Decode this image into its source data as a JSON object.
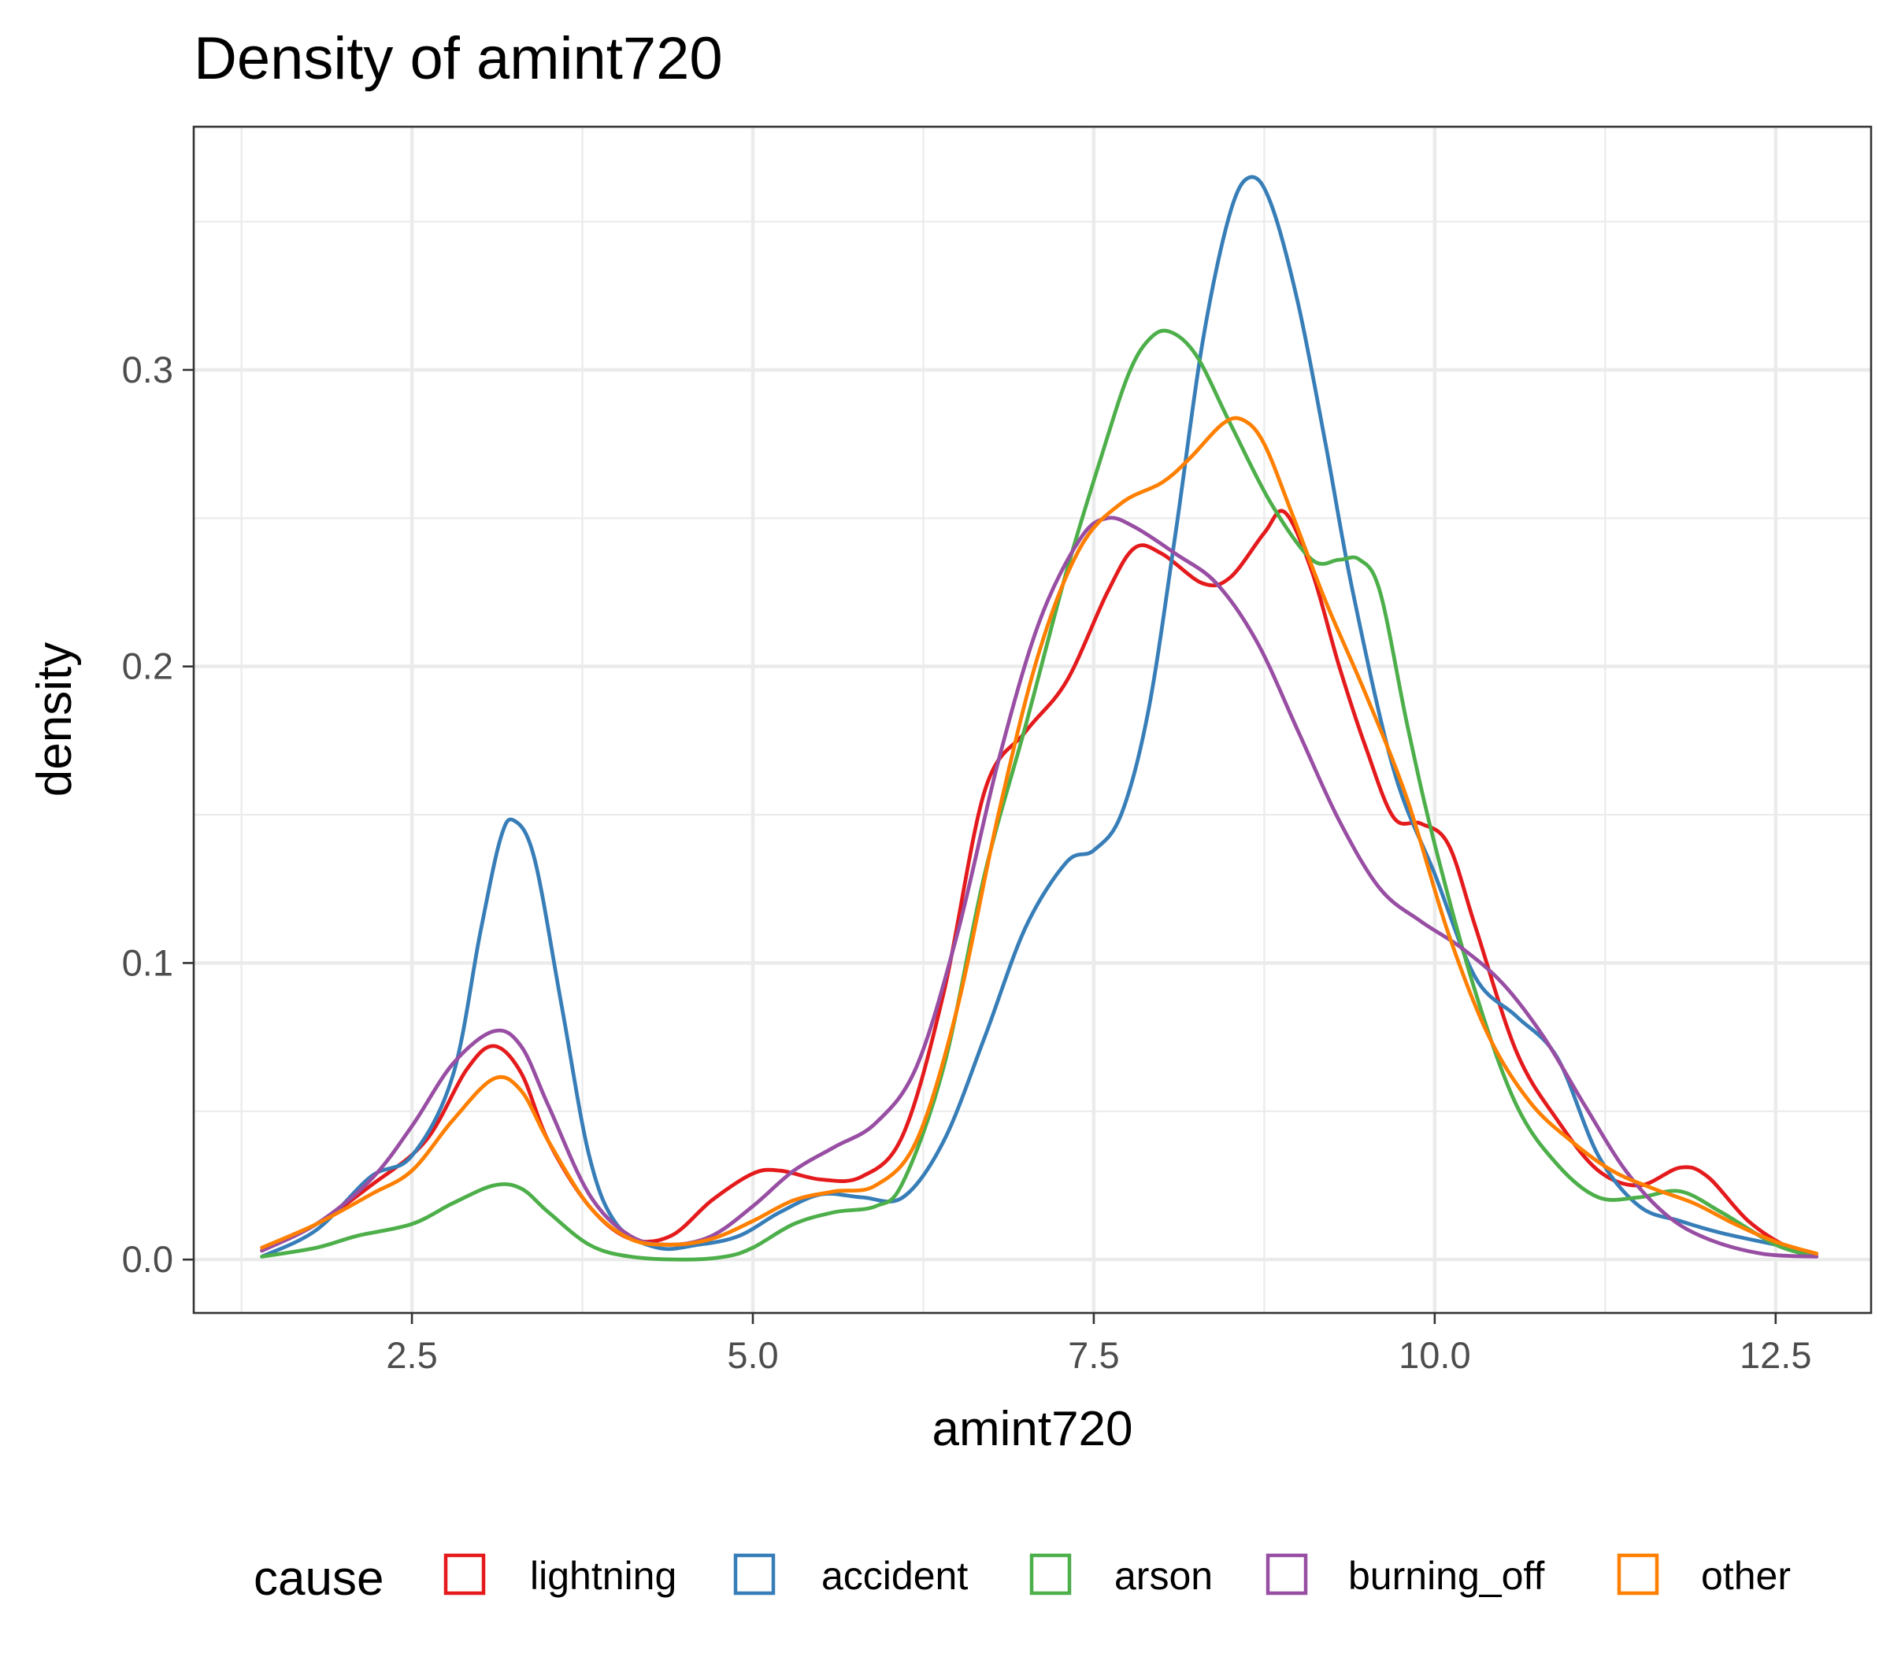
{
  "chart_data": {
    "type": "line",
    "title": "Density of amint720",
    "xlabel": "amint720",
    "ylabel": "density",
    "xlim": [
      0.9,
      13.2
    ],
    "ylim": [
      -0.018,
      0.382
    ],
    "x_ticks": [
      2.5,
      5.0,
      7.5,
      10.0,
      12.5
    ],
    "x_tick_labels": [
      "2.5",
      "5.0",
      "7.5",
      "10.0",
      "12.5"
    ],
    "y_ticks": [
      0.0,
      0.1,
      0.2,
      0.3
    ],
    "y_tick_labels": [
      "0.0",
      "0.1",
      "0.2",
      "0.3"
    ],
    "grid": true,
    "legend": {
      "title": "cause",
      "position": "bottom"
    },
    "series": [
      {
        "name": "lightning",
        "color": "#e41a1c",
        "points": [
          [
            1.4,
            0.003
          ],
          [
            1.8,
            0.012
          ],
          [
            2.2,
            0.025
          ],
          [
            2.6,
            0.04
          ],
          [
            2.9,
            0.064
          ],
          [
            3.1,
            0.072
          ],
          [
            3.3,
            0.063
          ],
          [
            3.5,
            0.04
          ],
          [
            3.8,
            0.018
          ],
          [
            4.1,
            0.007
          ],
          [
            4.4,
            0.008
          ],
          [
            4.7,
            0.02
          ],
          [
            5.0,
            0.029
          ],
          [
            5.2,
            0.03
          ],
          [
            5.5,
            0.027
          ],
          [
            5.8,
            0.028
          ],
          [
            6.1,
            0.042
          ],
          [
            6.4,
            0.09
          ],
          [
            6.7,
            0.158
          ],
          [
            7.0,
            0.178
          ],
          [
            7.3,
            0.195
          ],
          [
            7.6,
            0.225
          ],
          [
            7.8,
            0.24
          ],
          [
            8.0,
            0.238
          ],
          [
            8.3,
            0.228
          ],
          [
            8.5,
            0.23
          ],
          [
            8.75,
            0.245
          ],
          [
            8.9,
            0.252
          ],
          [
            9.1,
            0.232
          ],
          [
            9.3,
            0.2
          ],
          [
            9.5,
            0.172
          ],
          [
            9.7,
            0.149
          ],
          [
            9.9,
            0.147
          ],
          [
            10.1,
            0.14
          ],
          [
            10.3,
            0.112
          ],
          [
            10.6,
            0.07
          ],
          [
            10.9,
            0.047
          ],
          [
            11.2,
            0.03
          ],
          [
            11.5,
            0.025
          ],
          [
            11.8,
            0.031
          ],
          [
            12.0,
            0.028
          ],
          [
            12.3,
            0.013
          ],
          [
            12.6,
            0.004
          ],
          [
            12.8,
            0.002
          ]
        ]
      },
      {
        "name": "accident",
        "color": "#377eb8",
        "points": [
          [
            1.4,
            0.001
          ],
          [
            1.8,
            0.01
          ],
          [
            2.2,
            0.028
          ],
          [
            2.5,
            0.035
          ],
          [
            2.8,
            0.062
          ],
          [
            3.0,
            0.11
          ],
          [
            3.15,
            0.142
          ],
          [
            3.25,
            0.148
          ],
          [
            3.4,
            0.135
          ],
          [
            3.6,
            0.085
          ],
          [
            3.8,
            0.035
          ],
          [
            4.0,
            0.012
          ],
          [
            4.3,
            0.004
          ],
          [
            4.6,
            0.005
          ],
          [
            4.9,
            0.008
          ],
          [
            5.2,
            0.016
          ],
          [
            5.5,
            0.022
          ],
          [
            5.8,
            0.021
          ],
          [
            6.1,
            0.021
          ],
          [
            6.4,
            0.04
          ],
          [
            6.7,
            0.075
          ],
          [
            7.0,
            0.112
          ],
          [
            7.3,
            0.134
          ],
          [
            7.5,
            0.138
          ],
          [
            7.7,
            0.15
          ],
          [
            7.9,
            0.185
          ],
          [
            8.1,
            0.245
          ],
          [
            8.3,
            0.31
          ],
          [
            8.5,
            0.353
          ],
          [
            8.65,
            0.365
          ],
          [
            8.8,
            0.356
          ],
          [
            9.0,
            0.322
          ],
          [
            9.2,
            0.275
          ],
          [
            9.4,
            0.225
          ],
          [
            9.7,
            0.165
          ],
          [
            10.0,
            0.13
          ],
          [
            10.3,
            0.095
          ],
          [
            10.6,
            0.082
          ],
          [
            10.9,
            0.068
          ],
          [
            11.2,
            0.035
          ],
          [
            11.5,
            0.018
          ],
          [
            11.8,
            0.013
          ],
          [
            12.1,
            0.009
          ],
          [
            12.5,
            0.005
          ],
          [
            12.8,
            0.002
          ]
        ]
      },
      {
        "name": "arson",
        "color": "#4daf4a",
        "points": [
          [
            1.4,
            0.001
          ],
          [
            1.8,
            0.004
          ],
          [
            2.1,
            0.008
          ],
          [
            2.5,
            0.012
          ],
          [
            2.8,
            0.019
          ],
          [
            3.1,
            0.025
          ],
          [
            3.3,
            0.024
          ],
          [
            3.5,
            0.016
          ],
          [
            3.8,
            0.005
          ],
          [
            4.1,
            0.001
          ],
          [
            4.5,
            0.0
          ],
          [
            4.8,
            0.001
          ],
          [
            5.0,
            0.004
          ],
          [
            5.3,
            0.012
          ],
          [
            5.6,
            0.016
          ],
          [
            5.9,
            0.018
          ],
          [
            6.1,
            0.026
          ],
          [
            6.4,
            0.065
          ],
          [
            6.7,
            0.13
          ],
          [
            7.0,
            0.18
          ],
          [
            7.3,
            0.232
          ],
          [
            7.55,
            0.27
          ],
          [
            7.75,
            0.298
          ],
          [
            7.9,
            0.31
          ],
          [
            8.05,
            0.313
          ],
          [
            8.25,
            0.305
          ],
          [
            8.5,
            0.282
          ],
          [
            8.8,
            0.255
          ],
          [
            9.1,
            0.236
          ],
          [
            9.3,
            0.236
          ],
          [
            9.45,
            0.236
          ],
          [
            9.6,
            0.225
          ],
          [
            9.8,
            0.18
          ],
          [
            10.0,
            0.14
          ],
          [
            10.3,
            0.09
          ],
          [
            10.6,
            0.052
          ],
          [
            10.9,
            0.032
          ],
          [
            11.2,
            0.021
          ],
          [
            11.5,
            0.021
          ],
          [
            11.8,
            0.023
          ],
          [
            12.1,
            0.016
          ],
          [
            12.5,
            0.005
          ],
          [
            12.8,
            0.001
          ]
        ]
      },
      {
        "name": "burning_off",
        "color": "#984ea3",
        "points": [
          [
            1.4,
            0.003
          ],
          [
            1.8,
            0.012
          ],
          [
            2.2,
            0.027
          ],
          [
            2.5,
            0.045
          ],
          [
            2.8,
            0.066
          ],
          [
            3.1,
            0.077
          ],
          [
            3.3,
            0.072
          ],
          [
            3.5,
            0.052
          ],
          [
            3.8,
            0.022
          ],
          [
            4.1,
            0.008
          ],
          [
            4.4,
            0.005
          ],
          [
            4.7,
            0.008
          ],
          [
            5.0,
            0.018
          ],
          [
            5.3,
            0.03
          ],
          [
            5.6,
            0.038
          ],
          [
            5.9,
            0.046
          ],
          [
            6.2,
            0.065
          ],
          [
            6.5,
            0.11
          ],
          [
            6.8,
            0.168
          ],
          [
            7.1,
            0.215
          ],
          [
            7.4,
            0.243
          ],
          [
            7.6,
            0.25
          ],
          [
            7.8,
            0.247
          ],
          [
            8.1,
            0.238
          ],
          [
            8.4,
            0.228
          ],
          [
            8.7,
            0.208
          ],
          [
            9.0,
            0.178
          ],
          [
            9.3,
            0.148
          ],
          [
            9.6,
            0.125
          ],
          [
            9.9,
            0.114
          ],
          [
            10.2,
            0.105
          ],
          [
            10.5,
            0.093
          ],
          [
            10.8,
            0.075
          ],
          [
            11.1,
            0.052
          ],
          [
            11.4,
            0.03
          ],
          [
            11.7,
            0.015
          ],
          [
            12.0,
            0.007
          ],
          [
            12.4,
            0.002
          ],
          [
            12.8,
            0.001
          ]
        ]
      },
      {
        "name": "other",
        "color": "#ff7f00",
        "points": [
          [
            1.4,
            0.004
          ],
          [
            1.8,
            0.012
          ],
          [
            2.2,
            0.022
          ],
          [
            2.5,
            0.03
          ],
          [
            2.8,
            0.047
          ],
          [
            3.1,
            0.061
          ],
          [
            3.3,
            0.057
          ],
          [
            3.5,
            0.04
          ],
          [
            3.8,
            0.018
          ],
          [
            4.1,
            0.007
          ],
          [
            4.4,
            0.005
          ],
          [
            4.7,
            0.007
          ],
          [
            5.0,
            0.013
          ],
          [
            5.3,
            0.02
          ],
          [
            5.6,
            0.023
          ],
          [
            5.9,
            0.025
          ],
          [
            6.2,
            0.04
          ],
          [
            6.5,
            0.085
          ],
          [
            6.8,
            0.15
          ],
          [
            7.1,
            0.205
          ],
          [
            7.4,
            0.24
          ],
          [
            7.7,
            0.255
          ],
          [
            8.0,
            0.262
          ],
          [
            8.2,
            0.27
          ],
          [
            8.45,
            0.282
          ],
          [
            8.6,
            0.283
          ],
          [
            8.75,
            0.275
          ],
          [
            8.95,
            0.252
          ],
          [
            9.2,
            0.222
          ],
          [
            9.5,
            0.19
          ],
          [
            9.8,
            0.155
          ],
          [
            10.1,
            0.11
          ],
          [
            10.4,
            0.075
          ],
          [
            10.7,
            0.053
          ],
          [
            11.0,
            0.04
          ],
          [
            11.3,
            0.03
          ],
          [
            11.6,
            0.024
          ],
          [
            11.9,
            0.019
          ],
          [
            12.2,
            0.012
          ],
          [
            12.5,
            0.006
          ],
          [
            12.8,
            0.002
          ]
        ]
      }
    ]
  }
}
